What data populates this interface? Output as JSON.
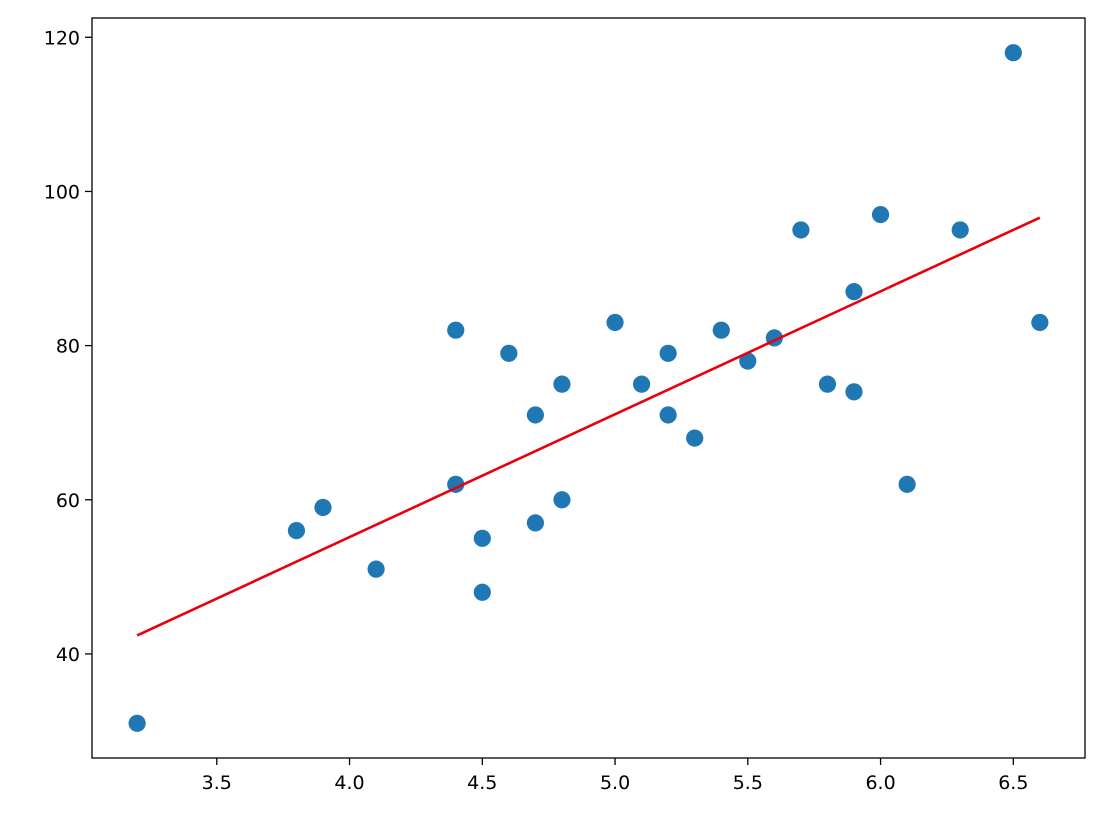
{
  "chart_data": {
    "type": "scatter",
    "title": "",
    "xlabel": "",
    "ylabel": "",
    "xlim": [
      3.03,
      6.77
    ],
    "ylim": [
      26.5,
      122.5
    ],
    "xticks": [
      3.5,
      4.0,
      4.5,
      5.0,
      5.5,
      6.0,
      6.5
    ],
    "xtick_labels": [
      "3.5",
      "4.0",
      "4.5",
      "5.0",
      "5.5",
      "6.0",
      "6.5"
    ],
    "yticks": [
      40,
      60,
      80,
      100,
      120
    ],
    "ytick_labels": [
      "40",
      "60",
      "80",
      "100",
      "120"
    ],
    "grid": false,
    "series": [
      {
        "type": "scatter",
        "color": "#1f77b4",
        "points": [
          [
            3.2,
            31
          ],
          [
            3.8,
            56
          ],
          [
            3.9,
            59
          ],
          [
            4.1,
            51
          ],
          [
            4.4,
            82
          ],
          [
            4.4,
            62
          ],
          [
            4.5,
            55
          ],
          [
            4.5,
            48
          ],
          [
            4.6,
            79
          ],
          [
            4.7,
            71
          ],
          [
            4.7,
            57
          ],
          [
            4.8,
            75
          ],
          [
            4.8,
            60
          ],
          [
            5.0,
            83
          ],
          [
            5.1,
            75
          ],
          [
            5.2,
            79
          ],
          [
            5.2,
            71
          ],
          [
            5.3,
            68
          ],
          [
            5.4,
            82
          ],
          [
            5.5,
            78
          ],
          [
            5.6,
            81
          ],
          [
            5.7,
            95
          ],
          [
            5.8,
            75
          ],
          [
            5.9,
            87
          ],
          [
            5.9,
            74
          ],
          [
            6.0,
            97
          ],
          [
            6.1,
            62
          ],
          [
            6.3,
            95
          ],
          [
            6.5,
            118
          ],
          [
            6.6,
            83
          ]
        ]
      },
      {
        "type": "line",
        "color": "#e8000b",
        "points": [
          [
            3.2,
            42.4
          ],
          [
            6.6,
            96.6
          ]
        ]
      }
    ]
  }
}
